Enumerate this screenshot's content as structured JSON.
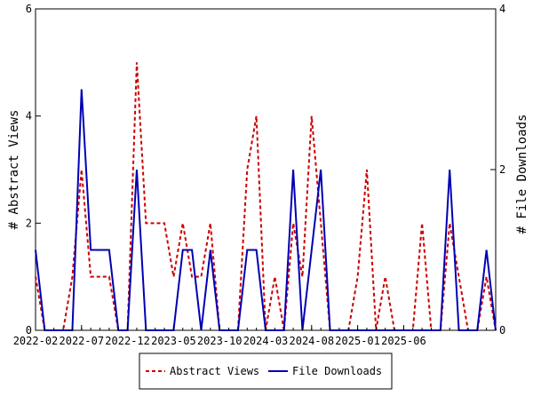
{
  "chart_data": {
    "type": "line",
    "x_tick_labels": [
      "2022-02",
      "2022-07",
      "2022-12",
      "2023-05",
      "2023-10",
      "2024-03",
      "2024-08",
      "2025-01",
      "2025-06"
    ],
    "y_left": {
      "label": "# Abstract Views",
      "ylim": [
        0,
        6
      ],
      "ticks": [
        "0",
        "2",
        "4",
        "6"
      ]
    },
    "y_right": {
      "label": "# File Downloads",
      "ylim": [
        0,
        4
      ],
      "ticks": [
        "0",
        "2",
        "4"
      ]
    },
    "grid": false,
    "legend_position": "bottom",
    "series": [
      {
        "name": "Abstract Views",
        "axis": "left",
        "color": "#cc0000",
        "style": "dashed",
        "values": [
          1,
          0,
          0,
          0,
          1,
          3,
          1,
          1,
          1,
          0,
          0,
          5,
          2,
          2,
          2,
          1,
          2,
          1,
          1,
          2,
          0,
          0,
          0,
          3,
          4,
          0,
          1,
          0,
          2,
          1,
          4,
          2,
          0,
          0,
          0,
          1,
          3,
          0,
          1,
          0,
          0,
          0,
          2,
          0,
          0,
          2,
          1,
          0,
          0,
          1,
          0
        ]
      },
      {
        "name": "File Downloads",
        "axis": "right",
        "color": "#0000b4",
        "style": "solid",
        "values": [
          1,
          0,
          0,
          0,
          0,
          3,
          1,
          1,
          1,
          0,
          0,
          2,
          0,
          0,
          0,
          0,
          1,
          1,
          0,
          1,
          0,
          0,
          0,
          1,
          1,
          0,
          0,
          0,
          2,
          0,
          1,
          2,
          0,
          0,
          0,
          0,
          0,
          0,
          0,
          0,
          0,
          0,
          0,
          0,
          0,
          2,
          0,
          0,
          0,
          1,
          0
        ]
      }
    ]
  }
}
